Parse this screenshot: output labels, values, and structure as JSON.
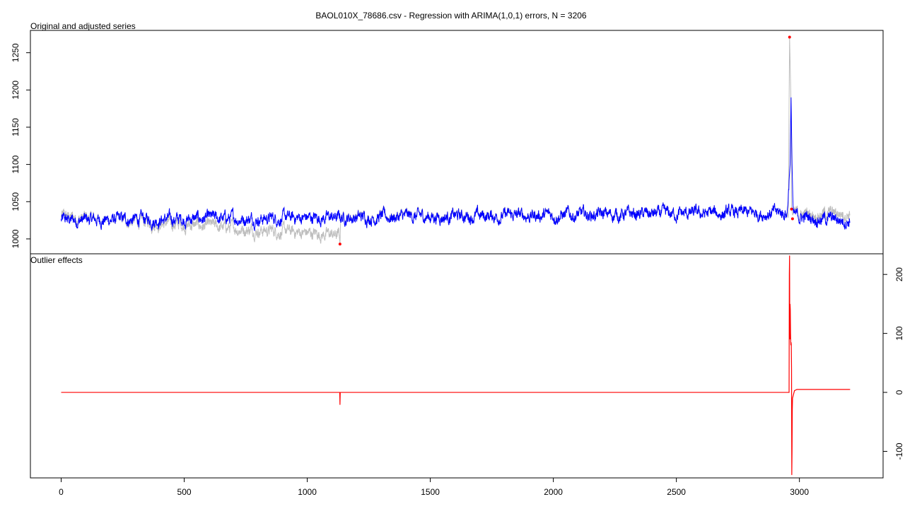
{
  "chart_data": [
    {
      "type": "line",
      "title": "BAOL010X_78686.csv - Regression with ARIMA(1,0,1) errors, N = 3206",
      "panel_label": "Original and adjusted series",
      "xlabel": "",
      "ylabel": "",
      "n": 3206,
      "xlim": [
        -125,
        3340
      ],
      "ylim": [
        980,
        1280
      ],
      "y_ticks": [
        1000,
        1050,
        1100,
        1150,
        1200,
        1250
      ],
      "y_tick_labels": [
        "1000",
        "1050",
        "1100",
        "1150",
        "1200",
        "1250"
      ],
      "grid": false,
      "series": [
        {
          "color": "#bebebe",
          "description": "original series",
          "baseline": 1025,
          "points": [
            [
              0,
              1030
            ],
            [
              1130,
              1005
            ],
            [
              1133,
              993
            ],
            [
              1136,
              1030
            ],
            [
              2955,
              1035
            ],
            [
              2960,
              1271
            ],
            [
              2965,
              1195
            ],
            [
              2968,
              1040
            ],
            [
              2975,
              1028
            ],
            [
              3206,
              1030
            ]
          ]
        },
        {
          "color": "#0000ff",
          "description": "adjusted series",
          "baseline": 1025,
          "points": [
            [
              0,
              1025
            ],
            [
              2950,
              1035
            ],
            [
              2962,
              1100
            ],
            [
              2966,
              1190
            ],
            [
              2970,
              1100
            ],
            [
              2975,
              1030
            ],
            [
              3206,
              1025
            ]
          ]
        }
      ],
      "outlier_points": [
        {
          "x": 1133,
          "y": 993
        },
        {
          "x": 2960,
          "y": 1271
        },
        {
          "x": 2968,
          "y": 1040
        },
        {
          "x": 2972,
          "y": 1027
        }
      ],
      "outlier_color": "#ff0000"
    },
    {
      "type": "line",
      "panel_label": "Outlier effects",
      "xlabel": "",
      "ylabel": "",
      "xlim": [
        -125,
        3340
      ],
      "ylim": [
        -145,
        235
      ],
      "x_ticks": [
        0,
        500,
        1000,
        1500,
        2000,
        2500,
        3000
      ],
      "x_tick_labels": [
        "0",
        "500",
        "1000",
        "1500",
        "2000",
        "2500",
        "3000"
      ],
      "y_ticks": [
        -100,
        0,
        100,
        200
      ],
      "y_tick_labels": [
        "-100",
        "0",
        "100",
        "200"
      ],
      "y_axis_side": "right",
      "grid": false,
      "series": [
        {
          "color": "#ff0000",
          "description": "outlier effects",
          "points": [
            [
              0,
              0
            ],
            [
              1132,
              0
            ],
            [
              1133,
              -21
            ],
            [
              1134,
              0
            ],
            [
              2958,
              0
            ],
            [
              2959,
              200
            ],
            [
              2960,
              232
            ],
            [
              2961,
              90
            ],
            [
              2962,
              150
            ],
            [
              2963,
              140
            ],
            [
              2964,
              100
            ],
            [
              2965,
              80
            ],
            [
              2966,
              85
            ],
            [
              2967,
              80
            ],
            [
              2968,
              40
            ],
            [
              2969,
              -140
            ],
            [
              2970,
              -100
            ],
            [
              2971,
              -30
            ],
            [
              2972,
              -10
            ],
            [
              2975,
              -5
            ],
            [
              2980,
              3
            ],
            [
              2990,
              5
            ],
            [
              3206,
              5
            ]
          ]
        }
      ]
    }
  ],
  "colors": {
    "original": "#bebebe",
    "adjusted": "#0000ff",
    "outliers": "#ff0000",
    "effects": "#ff0000"
  }
}
